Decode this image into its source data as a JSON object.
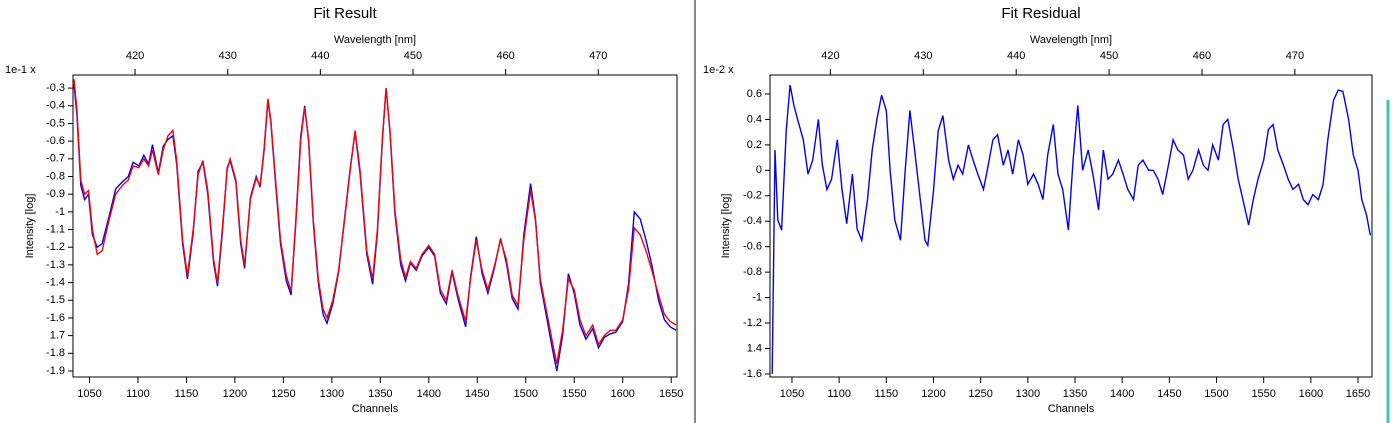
{
  "chart_data": [
    {
      "type": "line",
      "title": "Fit Result",
      "x_label": "Channels",
      "x2_label": "Wavelength [nm]",
      "y_label": "Intensity [log]",
      "y_multiplier": "1e-1 x",
      "xlim": [
        1033,
        1656
      ],
      "xticks": [
        1050,
        1100,
        1150,
        1200,
        1250,
        1300,
        1350,
        1400,
        1450,
        1500,
        1550,
        1600,
        1650
      ],
      "x2lim": [
        413.3,
        478.5
      ],
      "x2ticks": [
        420,
        430,
        440,
        450,
        460,
        470
      ],
      "ylim": [
        -1.934,
        -0.226
      ],
      "yticks": [
        -0.3,
        -0.4,
        -0.5,
        -0.6,
        -0.7,
        -0.8,
        -0.9,
        -1,
        -1.1,
        -1.2,
        -1.3,
        -1.4,
        -1.5,
        -1.6,
        {
          "value": -1.7,
          "label": "1.7"
        },
        -1.8,
        -1.9
      ],
      "x": [
        1034,
        1037,
        1041,
        1045,
        1049,
        1053,
        1058,
        1063,
        1070,
        1077,
        1084,
        1090,
        1095,
        1101,
        1106,
        1111,
        1115,
        1121,
        1126,
        1131,
        1136,
        1140,
        1146,
        1151,
        1157,
        1162,
        1167,
        1172,
        1178,
        1182,
        1187,
        1192,
        1195,
        1201,
        1206,
        1210,
        1216,
        1222,
        1226,
        1230,
        1234,
        1237,
        1242,
        1247,
        1253,
        1258,
        1263,
        1268,
        1272,
        1276,
        1281,
        1286,
        1291,
        1295,
        1301,
        1307,
        1313,
        1319,
        1324,
        1329,
        1336,
        1342,
        1347,
        1352,
        1356,
        1360,
        1365,
        1371,
        1376,
        1381,
        1387,
        1393,
        1400,
        1406,
        1412,
        1418,
        1424,
        1430,
        1438,
        1443,
        1449,
        1455,
        1461,
        1468,
        1474,
        1480,
        1486,
        1492,
        1498,
        1505,
        1510,
        1515,
        1521,
        1527,
        1532,
        1538,
        1544,
        1550,
        1556,
        1562,
        1569,
        1575,
        1581,
        1587,
        1593,
        1600,
        1606,
        1612,
        1618,
        1624,
        1630,
        1637,
        1643,
        1649,
        1655
      ],
      "series": [
        {
          "color": "#0000ff",
          "values": [
            -0.28,
            -0.45,
            -0.85,
            -0.93,
            -0.9,
            -1.13,
            -1.2,
            -1.18,
            -1.03,
            -0.87,
            -0.83,
            -0.8,
            -0.72,
            -0.74,
            -0.68,
            -0.73,
            -0.62,
            -0.78,
            -0.63,
            -0.59,
            -0.57,
            -0.73,
            -1.18,
            -1.38,
            -1.12,
            -0.77,
            -0.72,
            -0.9,
            -1.29,
            -1.42,
            -1.12,
            -0.75,
            -0.71,
            -0.83,
            -1.18,
            -1.32,
            -0.92,
            -0.8,
            -0.86,
            -0.66,
            -0.37,
            -0.49,
            -0.84,
            -1.18,
            -1.39,
            -1.47,
            -1.03,
            -0.57,
            -0.4,
            -0.6,
            -1.07,
            -1.4,
            -1.58,
            -1.63,
            -1.52,
            -1.34,
            -1.04,
            -0.75,
            -0.55,
            -0.78,
            -1.24,
            -1.41,
            -1.12,
            -0.6,
            -0.3,
            -0.55,
            -1.01,
            -1.3,
            -1.39,
            -1.29,
            -1.33,
            -1.25,
            -1.2,
            -1.25,
            -1.46,
            -1.52,
            -1.34,
            -1.49,
            -1.65,
            -1.37,
            -1.14,
            -1.35,
            -1.46,
            -1.31,
            -1.15,
            -1.29,
            -1.49,
            -1.55,
            -1.13,
            -0.84,
            -1.04,
            -1.4,
            -1.58,
            -1.76,
            -1.9,
            -1.7,
            -1.35,
            -1.46,
            -1.64,
            -1.72,
            -1.66,
            -1.77,
            -1.71,
            -1.69,
            -1.68,
            -1.62,
            -1.41,
            -1.0,
            -1.04,
            -1.16,
            -1.3,
            -1.5,
            -1.61,
            -1.65,
            -1.67
          ]
        },
        {
          "color": "#ff0000",
          "values": [
            -0.25,
            -0.42,
            -0.82,
            -0.9,
            -0.88,
            -1.1,
            -1.24,
            -1.22,
            -1.05,
            -0.9,
            -0.85,
            -0.82,
            -0.74,
            -0.75,
            -0.7,
            -0.74,
            -0.65,
            -0.79,
            -0.65,
            -0.57,
            -0.54,
            -0.71,
            -1.16,
            -1.36,
            -1.1,
            -0.79,
            -0.71,
            -0.88,
            -1.27,
            -1.4,
            -1.1,
            -0.76,
            -0.7,
            -0.82,
            -1.16,
            -1.3,
            -0.93,
            -0.81,
            -0.85,
            -0.65,
            -0.36,
            -0.48,
            -0.82,
            -1.16,
            -1.36,
            -1.45,
            -1.05,
            -0.59,
            -0.41,
            -0.59,
            -1.05,
            -1.38,
            -1.55,
            -1.6,
            -1.5,
            -1.33,
            -1.05,
            -0.76,
            -0.54,
            -0.76,
            -1.22,
            -1.38,
            -1.1,
            -0.59,
            -0.3,
            -0.54,
            -0.99,
            -1.27,
            -1.37,
            -1.28,
            -1.32,
            -1.24,
            -1.19,
            -1.24,
            -1.44,
            -1.5,
            -1.33,
            -1.47,
            -1.62,
            -1.38,
            -1.16,
            -1.33,
            -1.44,
            -1.3,
            -1.16,
            -1.27,
            -1.47,
            -1.53,
            -1.16,
            -0.88,
            -1.05,
            -1.38,
            -1.55,
            -1.72,
            -1.86,
            -1.67,
            -1.38,
            -1.44,
            -1.61,
            -1.7,
            -1.64,
            -1.75,
            -1.7,
            -1.67,
            -1.67,
            -1.61,
            -1.44,
            -1.09,
            -1.13,
            -1.22,
            -1.33,
            -1.47,
            -1.58,
            -1.62,
            -1.64
          ]
        }
      ]
    },
    {
      "type": "line",
      "title": "Fit Residual",
      "x_label": "Channels",
      "x2_label": "Wavelength [nm]",
      "y_label": "Intensity [log]",
      "y_multiplier": "1e-2 x",
      "xlim": [
        1026.7,
        1664.8
      ],
      "xticks": [
        1050,
        1100,
        1150,
        1200,
        1250,
        1300,
        1350,
        1400,
        1450,
        1500,
        1550,
        1600,
        1650
      ],
      "x2lim": [
        413.5,
        478.3
      ],
      "x2ticks": [
        420,
        430,
        440,
        450,
        460,
        470
      ],
      "ylim": [
        -1.624,
        0.749
      ],
      "yticks": [
        0.6,
        0.4,
        0.2,
        0,
        -0.2,
        -0.4,
        -0.6,
        -0.8,
        -1,
        -1.2,
        {
          "value": -1.4,
          "label": "1.4"
        },
        -1.6
      ],
      "x": [
        1029,
        1032,
        1035,
        1039,
        1044,
        1048,
        1052,
        1056,
        1062,
        1067,
        1072,
        1078,
        1082,
        1087,
        1092,
        1098,
        1103,
        1108,
        1114,
        1119,
        1124,
        1130,
        1135,
        1140,
        1145,
        1150,
        1154,
        1159,
        1165,
        1170,
        1175,
        1180,
        1186,
        1191,
        1194,
        1200,
        1205,
        1210,
        1216,
        1221,
        1226,
        1231,
        1237,
        1242,
        1247,
        1253,
        1258,
        1263,
        1268,
        1274,
        1279,
        1284,
        1290,
        1295,
        1300,
        1306,
        1311,
        1316,
        1321,
        1327,
        1332,
        1337,
        1343,
        1348,
        1353,
        1358,
        1364,
        1369,
        1375,
        1380,
        1385,
        1390,
        1396,
        1401,
        1406,
        1412,
        1417,
        1422,
        1428,
        1433,
        1438,
        1443,
        1449,
        1454,
        1459,
        1465,
        1470,
        1475,
        1481,
        1486,
        1491,
        1496,
        1502,
        1507,
        1512,
        1518,
        1523,
        1528,
        1534,
        1539,
        1544,
        1550,
        1555,
        1560,
        1565,
        1571,
        1576,
        1581,
        1587,
        1592,
        1597,
        1602,
        1608,
        1613,
        1618,
        1624,
        1629,
        1634,
        1640,
        1645,
        1650,
        1654,
        1659,
        1663
      ],
      "series": [
        {
          "color": "#0000ff",
          "values": [
            -1.6,
            0.16,
            -0.39,
            -0.47,
            0.32,
            0.67,
            0.51,
            0.4,
            0.24,
            -0.03,
            0.08,
            0.4,
            0.05,
            -0.15,
            -0.07,
            0.24,
            -0.15,
            -0.42,
            -0.03,
            -0.46,
            -0.55,
            -0.23,
            0.16,
            0.4,
            0.59,
            0.47,
            0,
            -0.39,
            -0.55,
            0,
            0.47,
            0.16,
            -0.23,
            -0.55,
            -0.59,
            -0.16,
            0.31,
            0.43,
            0.08,
            -0.07,
            0.04,
            -0.03,
            0.2,
            0.08,
            -0.03,
            -0.15,
            0.04,
            0.24,
            0.28,
            0.04,
            0.16,
            -0.03,
            0.24,
            0.12,
            -0.11,
            -0.03,
            -0.11,
            -0.23,
            0.12,
            0.36,
            -0.03,
            -0.15,
            -0.47,
            0.08,
            0.51,
            0,
            0.16,
            -0.03,
            -0.31,
            0.16,
            -0.07,
            -0.03,
            0.08,
            -0.03,
            -0.15,
            -0.23,
            0.04,
            0.08,
            0,
            0,
            -0.07,
            -0.19,
            0.04,
            0.24,
            0.16,
            0.12,
            -0.07,
            0,
            0.16,
            0.04,
            0,
            0.2,
            0.08,
            0.36,
            0.4,
            0.16,
            -0.07,
            -0.23,
            -0.43,
            -0.23,
            -0.07,
            0.08,
            0.32,
            0.36,
            0.16,
            0.04,
            -0.07,
            -0.15,
            -0.11,
            -0.23,
            -0.27,
            -0.19,
            -0.23,
            -0.11,
            0.24,
            0.55,
            0.63,
            0.62,
            0.4,
            0.12,
            0,
            -0.23,
            -0.35,
            -0.51
          ]
        }
      ]
    }
  ]
}
